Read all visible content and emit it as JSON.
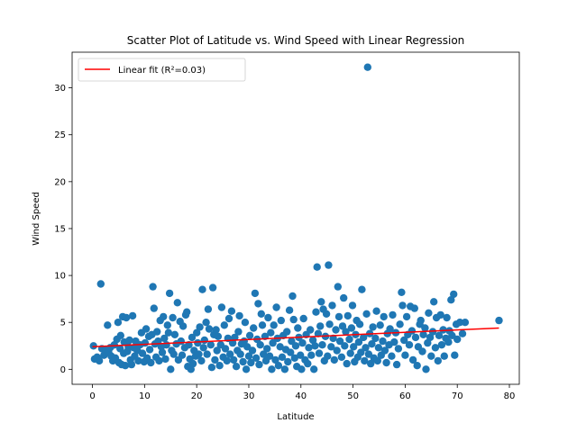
{
  "chart_data": {
    "type": "scatter",
    "title": "Scatter Plot of Latitude vs. Wind Speed with Linear Regression",
    "xlabel": "Latitude",
    "ylabel": "Wind Speed",
    "xlim": [
      -3.9,
      81.9
    ],
    "ylim": [
      -1.6,
      33.8
    ],
    "x_ticks": [
      0,
      10,
      20,
      30,
      40,
      50,
      60,
      70,
      80
    ],
    "y_ticks": [
      0,
      5,
      10,
      15,
      20,
      25,
      30
    ],
    "grid": false,
    "legend_position": "top-left",
    "colors": {
      "scatter": "#1f77b4",
      "fit": "#ff0000"
    },
    "fit_line": {
      "name": "Linear fit (R²=0.03)",
      "x": [
        0,
        78
      ],
      "y": [
        2.4,
        4.4
      ]
    },
    "series": [
      {
        "values": [
          [
            0.2,
            2.5
          ],
          [
            0.4,
            1.1
          ],
          [
            0.9,
            1.3
          ],
          [
            1.3,
            0.9
          ],
          [
            1.6,
            9.1
          ],
          [
            1.8,
            2.2
          ],
          [
            2.2,
            1.5
          ],
          [
            2.6,
            2.1
          ],
          [
            2.9,
            4.7
          ],
          [
            3.1,
            1.8
          ],
          [
            3.4,
            2.3
          ],
          [
            3.6,
            1.4
          ],
          [
            3.9,
            0.9
          ],
          [
            4.2,
            2.6
          ],
          [
            4.4,
            1.2
          ],
          [
            4.7,
            3.2
          ],
          [
            4.9,
            5.0
          ],
          [
            5.1,
            0.7
          ],
          [
            5.3,
            2.2
          ],
          [
            5.4,
            3.6
          ],
          [
            5.6,
            0.5
          ],
          [
            5.8,
            5.6
          ],
          [
            6.0,
            1.7
          ],
          [
            6.1,
            2.9
          ],
          [
            6.3,
            0.4
          ],
          [
            6.5,
            5.5
          ],
          [
            6.7,
            1.9
          ],
          [
            6.9,
            2.4
          ],
          [
            7.1,
            3.1
          ],
          [
            7.3,
            1.0
          ],
          [
            7.5,
            0.5
          ],
          [
            7.7,
            5.7
          ],
          [
            7.9,
            2.3
          ],
          [
            8.1,
            1.4
          ],
          [
            8.3,
            3.0
          ],
          [
            8.6,
            2.0
          ],
          [
            8.8,
            0.9
          ],
          [
            9.1,
            2.6
          ],
          [
            9.4,
            3.9
          ],
          [
            9.6,
            1.7
          ],
          [
            9.9,
            0.8
          ],
          [
            10.1,
            2.8
          ],
          [
            10.3,
            4.3
          ],
          [
            10.5,
            1.2
          ],
          [
            10.8,
            3.5
          ],
          [
            11.0,
            2.1
          ],
          [
            11.2,
            0.7
          ],
          [
            11.4,
            3.7
          ],
          [
            11.6,
            8.8
          ],
          [
            11.8,
            6.5
          ],
          [
            12.0,
            2.7
          ],
          [
            12.2,
            1.3
          ],
          [
            12.4,
            4.0
          ],
          [
            12.6,
            3.0
          ],
          [
            12.8,
            0.9
          ],
          [
            13.0,
            5.2
          ],
          [
            13.2,
            2.4
          ],
          [
            13.4,
            1.8
          ],
          [
            13.6,
            5.6
          ],
          [
            13.8,
            3.3
          ],
          [
            14.0,
            1.1
          ],
          [
            14.2,
            2.6
          ],
          [
            14.4,
            4.7
          ],
          [
            14.6,
            3.9
          ],
          [
            14.8,
            8.1
          ],
          [
            15.0,
            0.0
          ],
          [
            15.2,
            2.0
          ],
          [
            15.4,
            5.5
          ],
          [
            15.6,
            1.6
          ],
          [
            15.8,
            3.7
          ],
          [
            16.1,
            2.7
          ],
          [
            16.3,
            7.1
          ],
          [
            16.5,
            1.0
          ],
          [
            16.8,
            5.1
          ],
          [
            17.0,
            3.0
          ],
          [
            17.2,
            1.5
          ],
          [
            17.4,
            4.6
          ],
          [
            17.7,
            2.3
          ],
          [
            17.9,
            5.8
          ],
          [
            18.1,
            6.1
          ],
          [
            18.3,
            0.3
          ],
          [
            18.5,
            2.6
          ],
          [
            18.7,
            1.1
          ],
          [
            18.9,
            0.0
          ],
          [
            19.1,
            3.4
          ],
          [
            19.3,
            0.6
          ],
          [
            19.5,
            2.0
          ],
          [
            19.8,
            1.4
          ],
          [
            20.0,
            3.9
          ],
          [
            20.2,
            2.8
          ],
          [
            20.4,
            1.6
          ],
          [
            20.6,
            4.5
          ],
          [
            20.9,
            0.9
          ],
          [
            21.1,
            8.5
          ],
          [
            21.3,
            2.3
          ],
          [
            21.5,
            3.1
          ],
          [
            21.8,
            5.0
          ],
          [
            22.0,
            1.6
          ],
          [
            22.2,
            6.4
          ],
          [
            22.4,
            4.3
          ],
          [
            22.7,
            2.6
          ],
          [
            22.9,
            0.2
          ],
          [
            23.1,
            8.7
          ],
          [
            23.3,
            3.7
          ],
          [
            23.5,
            1.0
          ],
          [
            23.7,
            4.2
          ],
          [
            23.9,
            2.0
          ],
          [
            24.1,
            3.5
          ],
          [
            24.4,
            0.4
          ],
          [
            24.6,
            2.6
          ],
          [
            24.8,
            6.6
          ],
          [
            25.1,
            1.3
          ],
          [
            25.3,
            4.7
          ],
          [
            25.5,
            2.2
          ],
          [
            25.8,
            0.9
          ],
          [
            26.0,
            3.3
          ],
          [
            26.2,
            5.4
          ],
          [
            26.4,
            1.6
          ],
          [
            26.7,
            6.2
          ],
          [
            26.9,
            2.8
          ],
          [
            27.1,
            1.0
          ],
          [
            27.3,
            3.4
          ],
          [
            27.6,
            0.3
          ],
          [
            27.8,
            2.0
          ],
          [
            28.0,
            4.0
          ],
          [
            28.2,
            5.7
          ],
          [
            28.4,
            1.6
          ],
          [
            28.6,
            2.7
          ],
          [
            28.9,
            0.8
          ],
          [
            29.1,
            3.0
          ],
          [
            29.3,
            5.0
          ],
          [
            29.5,
            0.0
          ],
          [
            29.7,
            2.4
          ],
          [
            30.0,
            1.4
          ],
          [
            30.2,
            3.6
          ],
          [
            30.4,
            0.7
          ],
          [
            30.7,
            2.0
          ],
          [
            30.9,
            4.4
          ],
          [
            31.2,
            8.1
          ],
          [
            31.4,
            1.2
          ],
          [
            31.6,
            3.2
          ],
          [
            31.8,
            7.0
          ],
          [
            32.0,
            0.5
          ],
          [
            32.2,
            2.6
          ],
          [
            32.4,
            5.9
          ],
          [
            32.6,
            4.7
          ],
          [
            32.8,
            1.6
          ],
          [
            33.1,
            3.5
          ],
          [
            33.3,
            0.9
          ],
          [
            33.5,
            2.2
          ],
          [
            33.7,
            5.5
          ],
          [
            34.0,
            1.4
          ],
          [
            34.2,
            3.9
          ],
          [
            34.4,
            0.0
          ],
          [
            34.6,
            2.8
          ],
          [
            34.8,
            4.7
          ],
          [
            35.1,
            1.0
          ],
          [
            35.3,
            6.6
          ],
          [
            35.5,
            3.3
          ],
          [
            35.7,
            0.4
          ],
          [
            36.0,
            2.4
          ],
          [
            36.2,
            5.2
          ],
          [
            36.4,
            1.3
          ],
          [
            36.6,
            3.6
          ],
          [
            36.9,
            0.0
          ],
          [
            37.1,
            2.1
          ],
          [
            37.3,
            4.0
          ],
          [
            37.5,
            0.8
          ],
          [
            37.8,
            6.3
          ],
          [
            38.0,
            1.8
          ],
          [
            38.2,
            3.0
          ],
          [
            38.4,
            7.8
          ],
          [
            38.6,
            5.3
          ],
          [
            38.8,
            1.2
          ],
          [
            39.0,
            2.5
          ],
          [
            39.2,
            0.3
          ],
          [
            39.4,
            4.4
          ],
          [
            39.6,
            3.4
          ],
          [
            39.9,
            1.5
          ],
          [
            40.1,
            0.0
          ],
          [
            40.3,
            2.8
          ],
          [
            40.5,
            5.4
          ],
          [
            40.8,
            1.0
          ],
          [
            41.0,
            3.7
          ],
          [
            41.3,
            0.6
          ],
          [
            41.5,
            2.3
          ],
          [
            41.8,
            4.2
          ],
          [
            42.0,
            1.5
          ],
          [
            42.3,
            3.1
          ],
          [
            42.5,
            0.0
          ],
          [
            42.7,
            2.5
          ],
          [
            42.9,
            6.1
          ],
          [
            43.1,
            10.9
          ],
          [
            43.3,
            3.8
          ],
          [
            43.5,
            1.7
          ],
          [
            43.7,
            4.6
          ],
          [
            43.9,
            7.2
          ],
          [
            44.1,
            2.6
          ],
          [
            44.3,
            6.4
          ],
          [
            44.5,
            0.9
          ],
          [
            44.7,
            3.5
          ],
          [
            44.9,
            5.9
          ],
          [
            45.1,
            1.4
          ],
          [
            45.3,
            11.1
          ],
          [
            45.5,
            4.8
          ],
          [
            45.8,
            2.4
          ],
          [
            46.0,
            6.8
          ],
          [
            46.2,
            3.3
          ],
          [
            46.4,
            1.0
          ],
          [
            46.7,
            4.2
          ],
          [
            46.9,
            2.0
          ],
          [
            47.1,
            8.8
          ],
          [
            47.3,
            5.6
          ],
          [
            47.5,
            3.0
          ],
          [
            47.8,
            1.3
          ],
          [
            48.0,
            4.6
          ],
          [
            48.2,
            7.6
          ],
          [
            48.4,
            2.5
          ],
          [
            48.6,
            4.0
          ],
          [
            48.8,
            0.6
          ],
          [
            49.0,
            5.7
          ],
          [
            49.3,
            3.2
          ],
          [
            49.5,
            1.7
          ],
          [
            49.7,
            4.4
          ],
          [
            49.9,
            6.8
          ],
          [
            50.1,
            2.4
          ],
          [
            50.3,
            0.8
          ],
          [
            50.5,
            3.7
          ],
          [
            50.7,
            5.2
          ],
          [
            50.9,
            1.3
          ],
          [
            51.1,
            2.9
          ],
          [
            51.3,
            4.8
          ],
          [
            51.5,
            1.8
          ],
          [
            51.7,
            8.5
          ],
          [
            52.0,
            3.4
          ],
          [
            52.2,
            0.9
          ],
          [
            52.4,
            2.3
          ],
          [
            52.6,
            5.9
          ],
          [
            52.8,
            32.2
          ],
          [
            53.0,
            1.6
          ],
          [
            53.2,
            3.8
          ],
          [
            53.4,
            0.6
          ],
          [
            53.6,
            2.7
          ],
          [
            53.8,
            4.5
          ],
          [
            54.0,
            1.2
          ],
          [
            54.3,
            3.3
          ],
          [
            54.5,
            6.2
          ],
          [
            54.7,
            0.9
          ],
          [
            54.9,
            2.3
          ],
          [
            55.2,
            4.7
          ],
          [
            55.4,
            1.5
          ],
          [
            55.7,
            3.0
          ],
          [
            55.9,
            5.6
          ],
          [
            56.1,
            2.0
          ],
          [
            56.4,
            0.7
          ],
          [
            56.6,
            3.8
          ],
          [
            56.9,
            2.6
          ],
          [
            57.1,
            4.3
          ],
          [
            57.4,
            1.4
          ],
          [
            57.6,
            5.8
          ],
          [
            57.9,
            2.9
          ],
          [
            58.2,
            3.9
          ],
          [
            58.4,
            0.5
          ],
          [
            58.7,
            2.2
          ],
          [
            59.0,
            4.8
          ],
          [
            59.3,
            8.2
          ],
          [
            59.5,
            6.8
          ],
          [
            59.8,
            3.1
          ],
          [
            60.0,
            1.5
          ],
          [
            60.3,
            5.6
          ],
          [
            60.5,
            3.7
          ],
          [
            60.8,
            2.6
          ],
          [
            61.0,
            6.7
          ],
          [
            61.3,
            4.1
          ],
          [
            61.5,
            1.0
          ],
          [
            61.8,
            6.5
          ],
          [
            62.0,
            3.4
          ],
          [
            62.3,
            0.4
          ],
          [
            62.5,
            2.4
          ],
          [
            62.8,
            4.8
          ],
          [
            63.0,
            5.2
          ],
          [
            63.3,
            1.9
          ],
          [
            63.5,
            3.7
          ],
          [
            63.8,
            4.4
          ],
          [
            64.0,
            0.0
          ],
          [
            64.3,
            2.8
          ],
          [
            64.5,
            6.0
          ],
          [
            64.8,
            3.4
          ],
          [
            65.0,
            1.4
          ],
          [
            65.3,
            4.0
          ],
          [
            65.5,
            7.2
          ],
          [
            65.8,
            2.3
          ],
          [
            66.0,
            5.5
          ],
          [
            66.3,
            0.9
          ],
          [
            66.5,
            3.6
          ],
          [
            66.8,
            5.8
          ],
          [
            67.0,
            2.6
          ],
          [
            67.3,
            4.2
          ],
          [
            67.5,
            1.4
          ],
          [
            67.8,
            3.3
          ],
          [
            68.0,
            5.5
          ],
          [
            68.3,
            2.9
          ],
          [
            68.5,
            4.1
          ],
          [
            68.8,
            7.4
          ],
          [
            69.0,
            3.6
          ],
          [
            69.3,
            8.0
          ],
          [
            69.5,
            1.5
          ],
          [
            69.8,
            4.8
          ],
          [
            70.0,
            3.2
          ],
          [
            70.5,
            5.0
          ],
          [
            71.0,
            3.8
          ],
          [
            71.5,
            5.0
          ],
          [
            78.0,
            5.2
          ]
        ]
      }
    ]
  }
}
